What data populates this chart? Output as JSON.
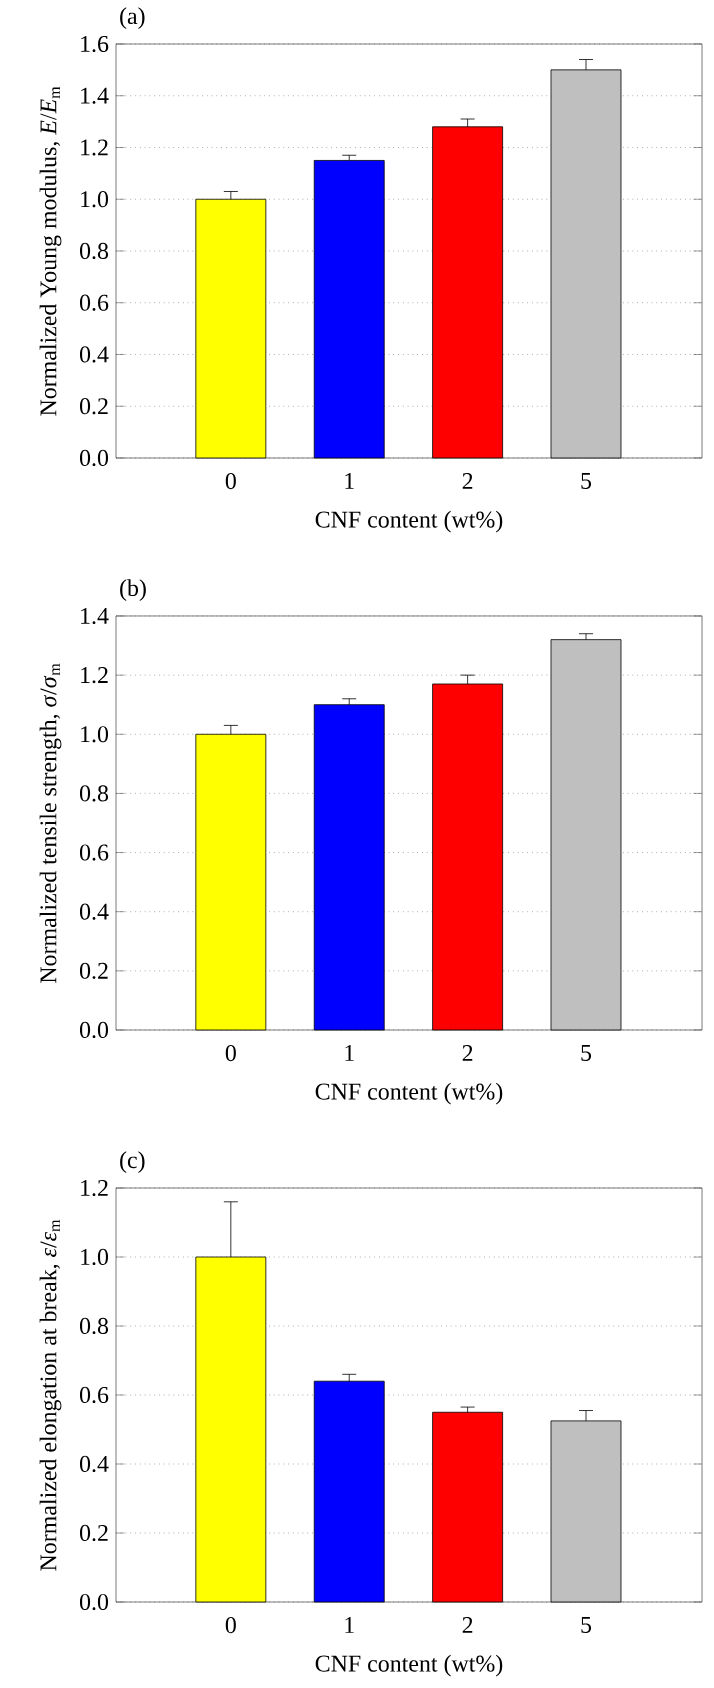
{
  "chart_data": [
    {
      "type": "bar",
      "title": "(a)",
      "xlabel": "CNF content (wt%)",
      "ylabel": "Normalized Young modulus, *E*/*E*$_{m}$",
      "categories": [
        "0",
        "1",
        "2",
        "5"
      ],
      "values": [
        1.0,
        1.15,
        1.28,
        1.5
      ],
      "colors": [
        "#ffff00",
        "#0000ff",
        "#ff0000",
        "#bfbfbf"
      ],
      "errors": [
        [
          1.0,
          1.03
        ],
        [
          1.15,
          1.17
        ],
        [
          1.28,
          1.31
        ],
        [
          1.5,
          1.54
        ]
      ],
      "ylim": [
        0,
        1.6
      ],
      "yticks": [
        {
          "value": 0,
          "label": "0.0"
        },
        {
          "value": 0.2,
          "label": "0.2"
        },
        {
          "value": 0.4,
          "label": "0.4"
        },
        {
          "value": 0.6,
          "label": "0.6"
        },
        {
          "value": 0.8,
          "label": "0.8"
        },
        {
          "value": 1.0,
          "label": "1.0"
        },
        {
          "value": 1.2,
          "label": "1.2"
        },
        {
          "value": 1.4,
          "label": "1.4"
        },
        {
          "value": 1.6,
          "label": "1.6"
        }
      ],
      "grid": "y"
    },
    {
      "type": "bar",
      "title": "(b)",
      "xlabel": "CNF content (wt%)",
      "ylabel": "Normalized tensile strength, *σ*/*σ*$_{m}$",
      "categories": [
        "0",
        "1",
        "2",
        "5"
      ],
      "values": [
        1.0,
        1.1,
        1.17,
        1.32
      ],
      "colors": [
        "#ffff00",
        "#0000ff",
        "#ff0000",
        "#bfbfbf"
      ],
      "errors": [
        [
          1.0,
          1.03
        ],
        [
          1.1,
          1.12
        ],
        [
          1.17,
          1.2
        ],
        [
          1.32,
          1.34
        ]
      ],
      "ylim": [
        0,
        1.4
      ],
      "yticks": [
        {
          "value": 0,
          "label": "0.0"
        },
        {
          "value": 0.2,
          "label": "0.2"
        },
        {
          "value": 0.4,
          "label": "0.4"
        },
        {
          "value": 0.6,
          "label": "0.6"
        },
        {
          "value": 0.8,
          "label": "0.8"
        },
        {
          "value": 1.0,
          "label": "1.0"
        },
        {
          "value": 1.2,
          "label": "1.2"
        },
        {
          "value": 1.4,
          "label": "1.4"
        }
      ],
      "grid": "y"
    },
    {
      "type": "bar",
      "title": "(c)",
      "xlabel": "CNF content (wt%)",
      "ylabel": "Normalized elongation at break, *ε*/*ε*$_{m}$",
      "categories": [
        "0",
        "1",
        "2",
        "5"
      ],
      "values": [
        1.0,
        0.64,
        0.55,
        0.525
      ],
      "colors": [
        "#ffff00",
        "#0000ff",
        "#ff0000",
        "#bfbfbf"
      ],
      "errors": [
        [
          1.0,
          1.16
        ],
        [
          0.64,
          0.66
        ],
        [
          0.55,
          0.565
        ],
        [
          0.525,
          0.555
        ]
      ],
      "ylim": [
        0,
        1.2
      ],
      "yticks": [
        {
          "value": 0,
          "label": "0.0"
        },
        {
          "value": 0.2,
          "label": "0.2"
        },
        {
          "value": 0.4,
          "label": "0.4"
        },
        {
          "value": 0.6,
          "label": "0.6"
        },
        {
          "value": 0.8,
          "label": "0.8"
        },
        {
          "value": 1.0,
          "label": "1.0"
        },
        {
          "value": 1.2,
          "label": "1.2"
        }
      ],
      "grid": "y"
    }
  ]
}
